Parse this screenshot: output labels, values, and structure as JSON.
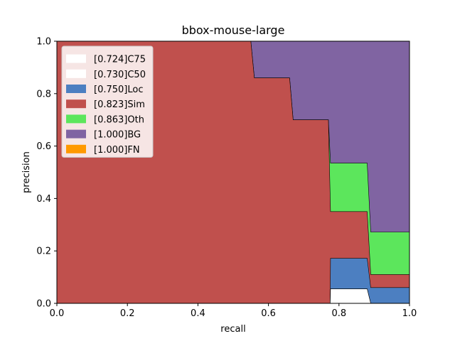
{
  "chart_data": {
    "type": "area",
    "title": "bbox-mouse-large",
    "xlabel": "recall",
    "ylabel": "precision",
    "xlim": [
      0,
      1
    ],
    "ylim": [
      0,
      1
    ],
    "xticks": [
      "0.0",
      "0.2",
      "0.4",
      "0.6",
      "0.8",
      "1.0"
    ],
    "yticks": [
      "0.0",
      "0.2",
      "0.4",
      "0.6",
      "0.8",
      "1.0"
    ],
    "legend_position": "upper-left",
    "grid": false,
    "series": [
      {
        "name": "[0.724]C75",
        "color": "#ffffff",
        "x": [
          0.0,
          0.775,
          0.776,
          0.88,
          0.89,
          1.0
        ],
        "y": [
          0.0,
          0.0,
          0.055,
          0.055,
          0.0,
          0.0
        ]
      },
      {
        "name": "[0.730]C50",
        "color": "#ffffff",
        "x": [
          0.0,
          0.775,
          0.776,
          0.88,
          0.89,
          1.0
        ],
        "y": [
          0.0,
          0.0,
          0.055,
          0.055,
          0.0,
          0.0
        ]
      },
      {
        "name": "[0.750]Loc",
        "color": "#4c7fc1",
        "x": [
          0.0,
          0.775,
          0.776,
          0.88,
          0.89,
          1.0
        ],
        "y": [
          0.0,
          0.0,
          0.172,
          0.172,
          0.06,
          0.06
        ]
      },
      {
        "name": "[0.823]Sim",
        "color": "#c0504d",
        "x": [
          0.0,
          0.55,
          0.56,
          0.66,
          0.67,
          0.77,
          0.776,
          0.88,
          0.89,
          1.0
        ],
        "y": [
          1.0,
          1.0,
          0.86,
          0.86,
          0.7,
          0.7,
          0.35,
          0.35,
          0.11,
          0.11
        ]
      },
      {
        "name": "[0.863]Oth",
        "color": "#5ce65c",
        "x": [
          0.0,
          0.55,
          0.56,
          0.66,
          0.67,
          0.77,
          0.776,
          0.88,
          0.89,
          1.0
        ],
        "y": [
          1.0,
          1.0,
          0.86,
          0.86,
          0.7,
          0.7,
          0.535,
          0.535,
          0.272,
          0.272
        ]
      },
      {
        "name": "[1.000]BG",
        "color": "#8064a2",
        "x": [
          0.0,
          1.0
        ],
        "y": [
          1.0,
          1.0
        ]
      },
      {
        "name": "[1.000]FN",
        "color": "#ff9900",
        "x": [
          0.0,
          1.0
        ],
        "y": [
          1.0,
          1.0
        ]
      }
    ]
  }
}
